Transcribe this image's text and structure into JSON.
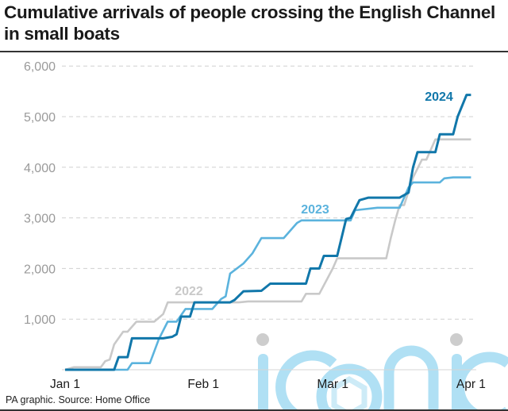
{
  "title": "Cumulative arrivals of people crossing the English Channel in small boats",
  "source": "PA graphic. Source:  Home Office",
  "watermark": "iconic",
  "chart_data": {
    "type": "line",
    "title": "Cumulative arrivals of people crossing the English Channel in small boats",
    "xlabel": "",
    "ylabel": "",
    "x_ticks": [
      "Jan 1",
      "Feb 1",
      "Mar 1",
      "Apr 1"
    ],
    "y_ticks": [
      "1,000",
      "2,000",
      "3,000",
      "4,000",
      "5,000",
      "6,000"
    ],
    "ylim": [
      0,
      6000
    ],
    "xlim": [
      "Jan 1",
      "Apr 1"
    ],
    "grid": "horizontal dashed",
    "series": [
      {
        "name": "2022",
        "color": "#c9c9c9",
        "points": [
          [
            "Jan 1",
            0
          ],
          [
            "Jan 3",
            50
          ],
          [
            "Jan 9",
            50
          ],
          [
            "Jan 10",
            170
          ],
          [
            "Jan 11",
            200
          ],
          [
            "Jan 12",
            500
          ],
          [
            "Jan 14",
            750
          ],
          [
            "Jan 15",
            750
          ],
          [
            "Jan 17",
            950
          ],
          [
            "Jan 21",
            950
          ],
          [
            "Jan 23",
            1100
          ],
          [
            "Jan 24",
            1330
          ],
          [
            "Feb 9",
            1330
          ],
          [
            "Feb 11",
            1350
          ],
          [
            "Feb 23",
            1350
          ],
          [
            "Feb 24",
            1500
          ],
          [
            "Feb 27",
            1500
          ],
          [
            "Mar 1",
            2000
          ],
          [
            "Mar 2",
            2200
          ],
          [
            "Mar 13",
            2200
          ],
          [
            "Mar 14",
            2600
          ],
          [
            "Mar 15",
            2950
          ],
          [
            "Mar 16",
            3250
          ],
          [
            "Mar 17",
            3250
          ],
          [
            "Mar 19",
            3800
          ],
          [
            "Mar 21",
            4150
          ],
          [
            "Mar 22",
            4150
          ],
          [
            "Mar 24",
            4550
          ],
          [
            "Apr 1",
            4550
          ]
        ]
      },
      {
        "name": "2023",
        "color": "#5bb3dd",
        "points": [
          [
            "Jan 1",
            0
          ],
          [
            "Jan 15",
            0
          ],
          [
            "Jan 16",
            130
          ],
          [
            "Jan 20",
            130
          ],
          [
            "Jan 22",
            600
          ],
          [
            "Jan 24",
            950
          ],
          [
            "Jan 26",
            950
          ],
          [
            "Jan 28",
            1200
          ],
          [
            "Feb 3",
            1200
          ],
          [
            "Feb 5",
            1400
          ],
          [
            "Feb 6",
            1450
          ],
          [
            "Feb 7",
            1900
          ],
          [
            "Feb 10",
            2100
          ],
          [
            "Feb 12",
            2300
          ],
          [
            "Feb 14",
            2600
          ],
          [
            "Feb 19",
            2600
          ],
          [
            "Feb 22",
            2900
          ],
          [
            "Feb 23",
            2950
          ],
          [
            "Mar 5",
            2950
          ],
          [
            "Mar 6",
            3150
          ],
          [
            "Mar 11",
            3200
          ],
          [
            "Mar 16",
            3200
          ],
          [
            "Mar 18",
            3600
          ],
          [
            "Mar 19",
            3700
          ],
          [
            "Mar 25",
            3700
          ],
          [
            "Mar 26",
            3780
          ],
          [
            "Mar 28",
            3800
          ],
          [
            "Apr 1",
            3800
          ]
        ]
      },
      {
        "name": "2024",
        "color": "#1177aa",
        "points": [
          [
            "Jan 1",
            0
          ],
          [
            "Jan 12",
            0
          ],
          [
            "Jan 13",
            250
          ],
          [
            "Jan 15",
            250
          ],
          [
            "Jan 16",
            620
          ],
          [
            "Jan 23",
            620
          ],
          [
            "Jan 25",
            650
          ],
          [
            "Jan 26",
            700
          ],
          [
            "Jan 27",
            1050
          ],
          [
            "Jan 29",
            1050
          ],
          [
            "Jan 30",
            1330
          ],
          [
            "Feb 7",
            1330
          ],
          [
            "Feb 8",
            1380
          ],
          [
            "Feb 10",
            1550
          ],
          [
            "Feb 14",
            1560
          ],
          [
            "Feb 16",
            1700
          ],
          [
            "Feb 24",
            1700
          ],
          [
            "Feb 25",
            2000
          ],
          [
            "Feb 27",
            2000
          ],
          [
            "Feb 28",
            2250
          ],
          [
            "Mar 2",
            2250
          ],
          [
            "Mar 4",
            2980
          ],
          [
            "Mar 5",
            3000
          ],
          [
            "Mar 7",
            3350
          ],
          [
            "Mar 9",
            3400
          ],
          [
            "Mar 16",
            3400
          ],
          [
            "Mar 17",
            3450
          ],
          [
            "Mar 18",
            3500
          ],
          [
            "Mar 19",
            4000
          ],
          [
            "Mar 20",
            4300
          ],
          [
            "Mar 24",
            4300
          ],
          [
            "Mar 25",
            4650
          ],
          [
            "Mar 28",
            4650
          ],
          [
            "Mar 29",
            5000
          ],
          [
            "Mar 31",
            5430
          ],
          [
            "Apr 1",
            5430
          ]
        ]
      }
    ]
  }
}
